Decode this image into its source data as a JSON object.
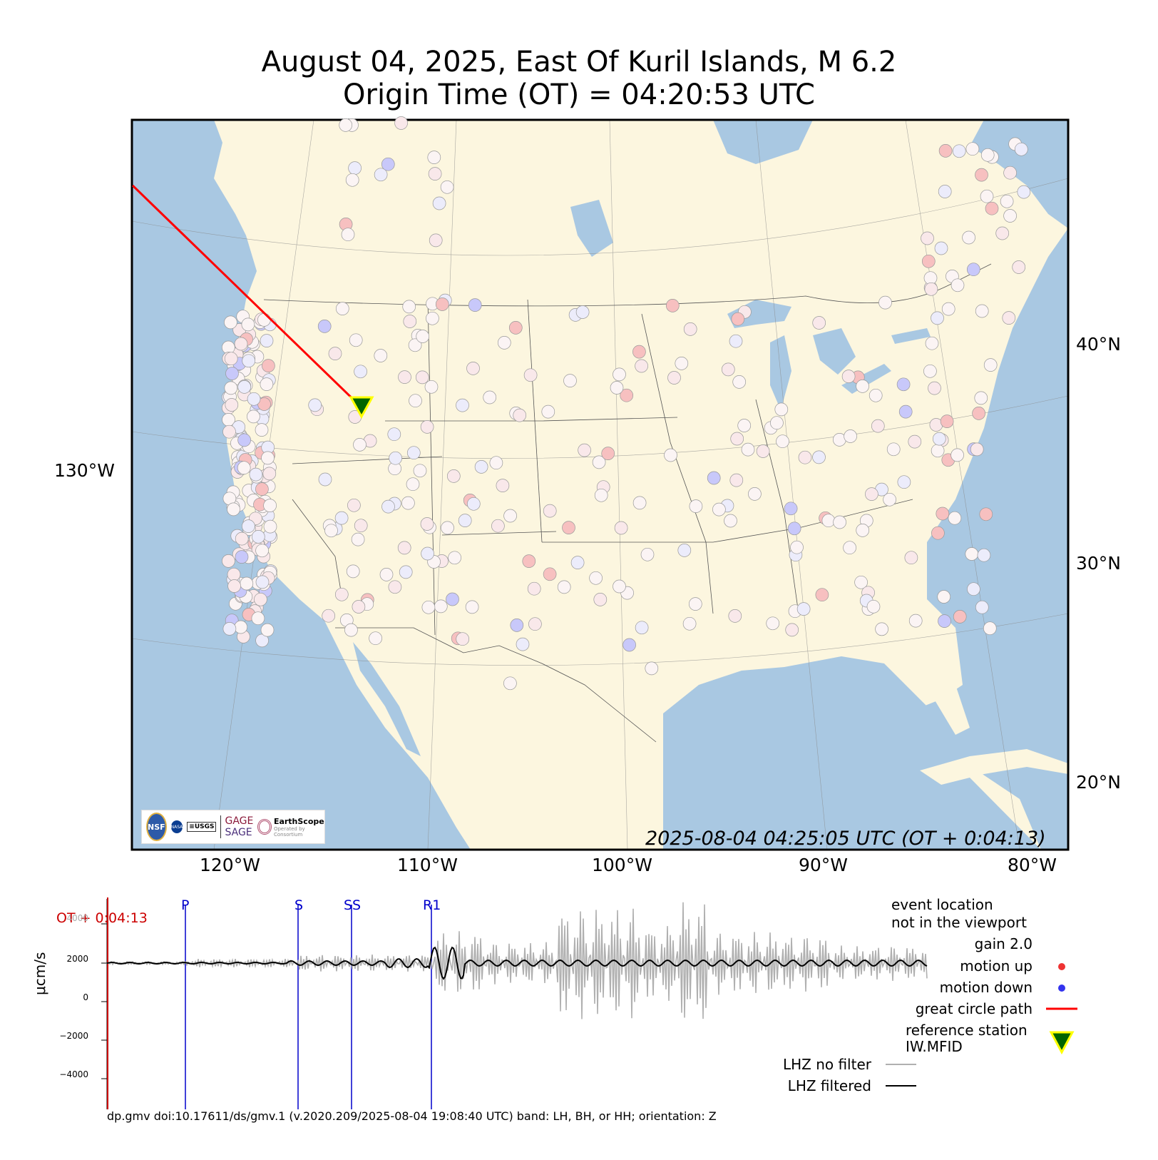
{
  "title": {
    "line1": "August 04, 2025, East Of Kuril Islands, M 6.2",
    "line2": "Origin Time (OT) = 04:20:53 UTC"
  },
  "map": {
    "lon_labels": [
      "120°W",
      "110°W",
      "100°W",
      "90°W",
      "80°W"
    ],
    "lat_labels": [
      "40°N",
      "30°N",
      "20°N"
    ],
    "left_label": "130°W",
    "timestamp": "2025-08-04 04:25:05 UTC (OT + 0:04:13)",
    "colors": {
      "ocean": "#a9c8e2",
      "land": "#fcf6df",
      "path": "#ff0000",
      "up": "#f08080",
      "down": "#8080ff",
      "station": "#006400"
    },
    "reference_station": {
      "lon": -113.5,
      "lat": 43.5
    },
    "logos": {
      "nsf": "NSF",
      "nasa": "NASA",
      "usgs": "≡USGS",
      "gage": "GAGE",
      "sage": "SAGE",
      "earthscope": "EarthScope",
      "earthscope_sub": "Operated by Consortium"
    }
  },
  "seismogram": {
    "ot_label": "OT + 0:04:13",
    "phases": [
      {
        "name": "P"
      },
      {
        "name": "S"
      },
      {
        "name": "SS"
      },
      {
        "name": "R1"
      }
    ],
    "y_ticks": [
      "4000",
      "2000",
      "0",
      "−2000",
      "−4000"
    ],
    "units": "μcm/s",
    "footer": "dp.gmv doi:10.17611/ds/gmv.1 (v.2020.209/2025-08-04 19:08:40 UTC) band: LH, BH, or HH; orientation: Z"
  },
  "legend": {
    "event_line1": "event location",
    "event_line2": "not in the viewport",
    "gain": "gain  2.0",
    "motion_up": "motion up",
    "motion_down": "motion down",
    "great_circle": "great circle path",
    "ref_line1": "reference station",
    "ref_line2": "IW.MFID",
    "no_filter": "LHZ no filter",
    "filtered": "LHZ filtered"
  }
}
